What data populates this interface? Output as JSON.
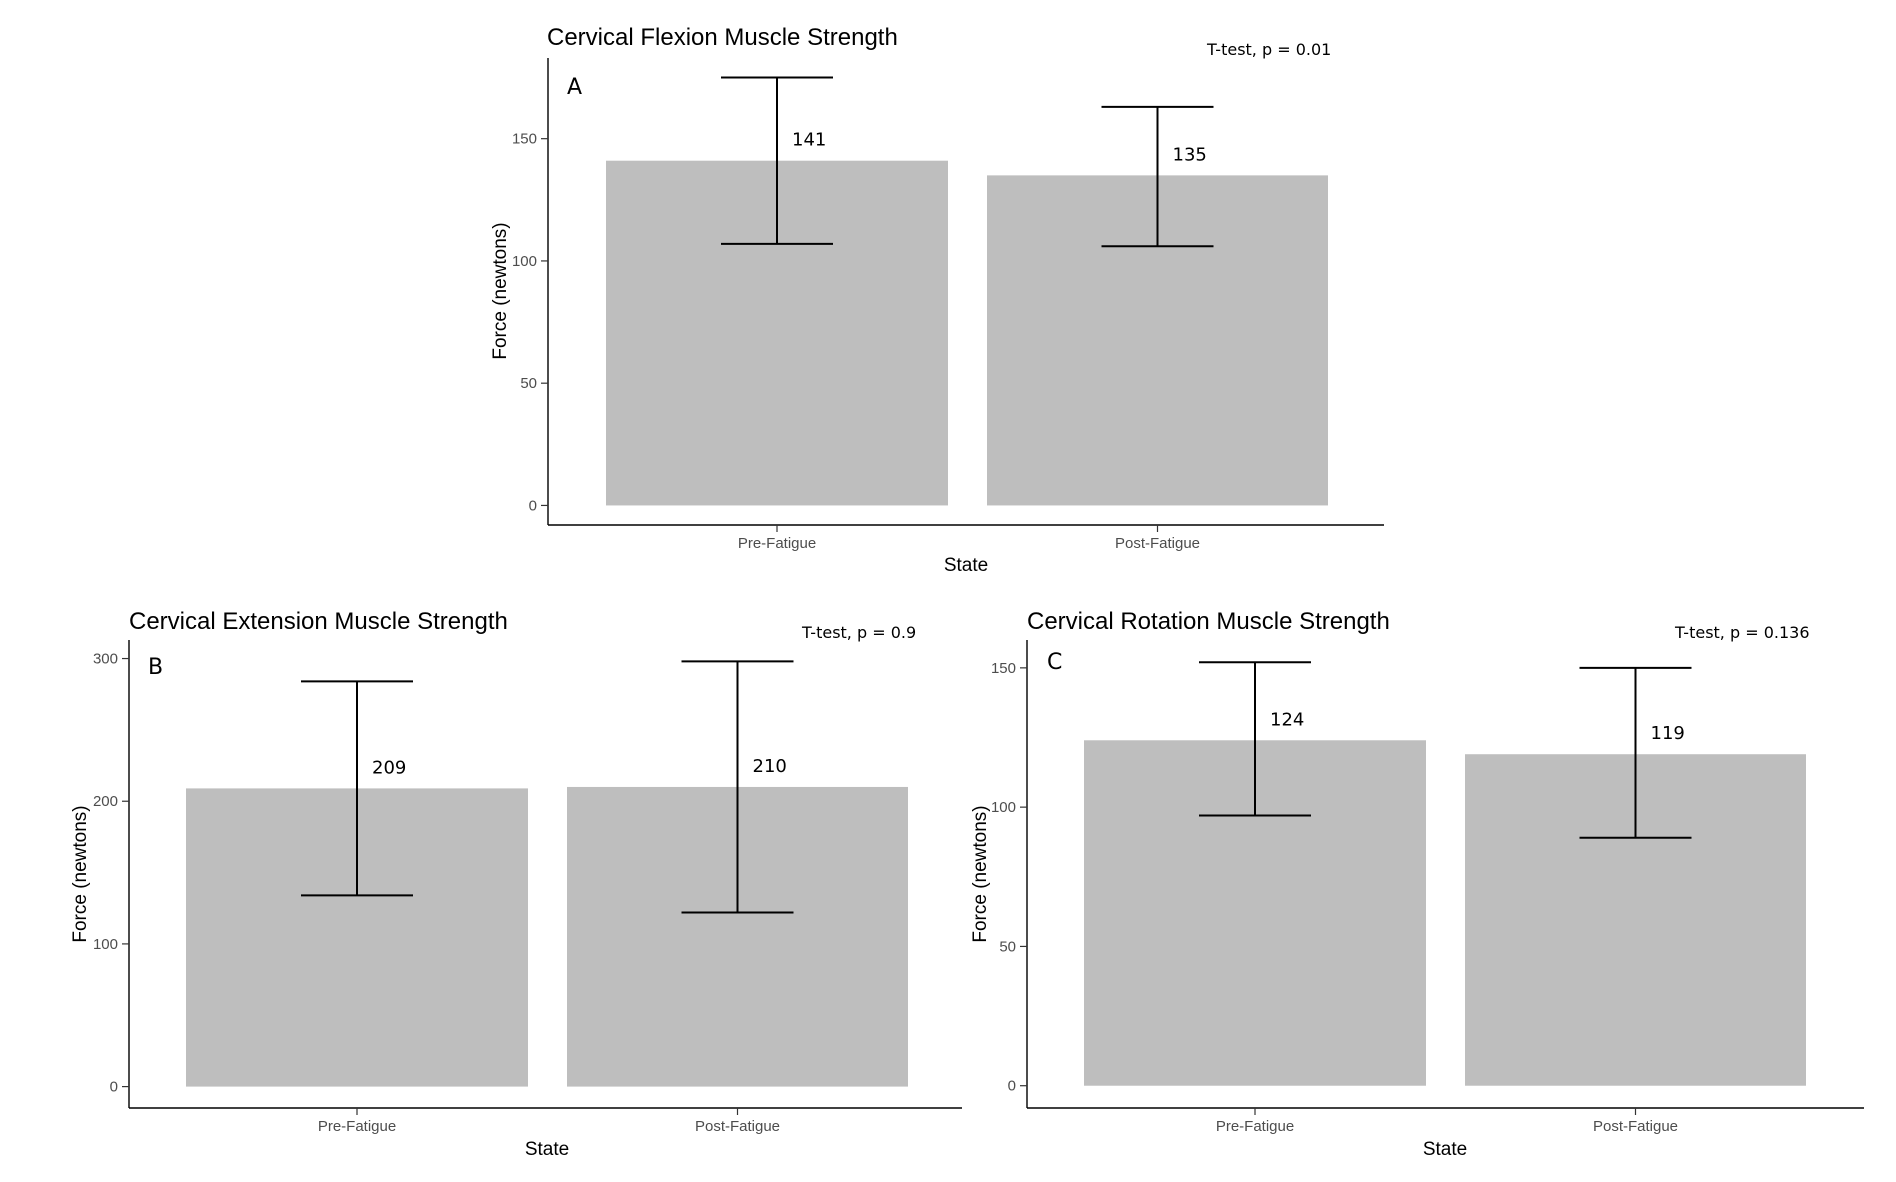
{
  "chart_data": [
    {
      "type": "bar",
      "panel_label": "A",
      "title": "Cervical Flexion Muscle Strength",
      "annotation": "T-test, p = 0.01",
      "xlabel": "State",
      "ylabel": "Force (newtons)",
      "categories": [
        "Pre-Fatigue",
        "Post-Fatigue"
      ],
      "values": [
        141,
        135
      ],
      "value_labels": [
        "141",
        "135"
      ],
      "error_low": [
        107,
        106
      ],
      "error_high": [
        175,
        163
      ],
      "yticks": [
        0,
        50,
        100,
        150
      ],
      "ylim": [
        -8,
        183
      ]
    },
    {
      "type": "bar",
      "panel_label": "B",
      "title": "Cervical Extension Muscle Strength",
      "annotation": "T-test, p = 0.9",
      "xlabel": "State",
      "ylabel": "Force (newtons)",
      "categories": [
        "Pre-Fatigue",
        "Post-Fatigue"
      ],
      "values": [
        209,
        210
      ],
      "value_labels": [
        "209",
        "210"
      ],
      "error_low": [
        134,
        122
      ],
      "error_high": [
        284,
        298
      ],
      "yticks": [
        0,
        100,
        200,
        300
      ],
      "ylim": [
        -15,
        313
      ]
    },
    {
      "type": "bar",
      "panel_label": "C",
      "title": "Cervical Rotation Muscle Strength",
      "annotation": "T-test, p = 0.136",
      "xlabel": "State",
      "ylabel": "Force (newtons)",
      "categories": [
        "Pre-Fatigue",
        "Post-Fatigue"
      ],
      "values": [
        124,
        119
      ],
      "value_labels": [
        "124",
        "119"
      ],
      "error_low": [
        97,
        89
      ],
      "error_high": [
        152,
        150
      ],
      "yticks": [
        0,
        50,
        100,
        150
      ],
      "ylim": [
        -8,
        160
      ]
    }
  ]
}
